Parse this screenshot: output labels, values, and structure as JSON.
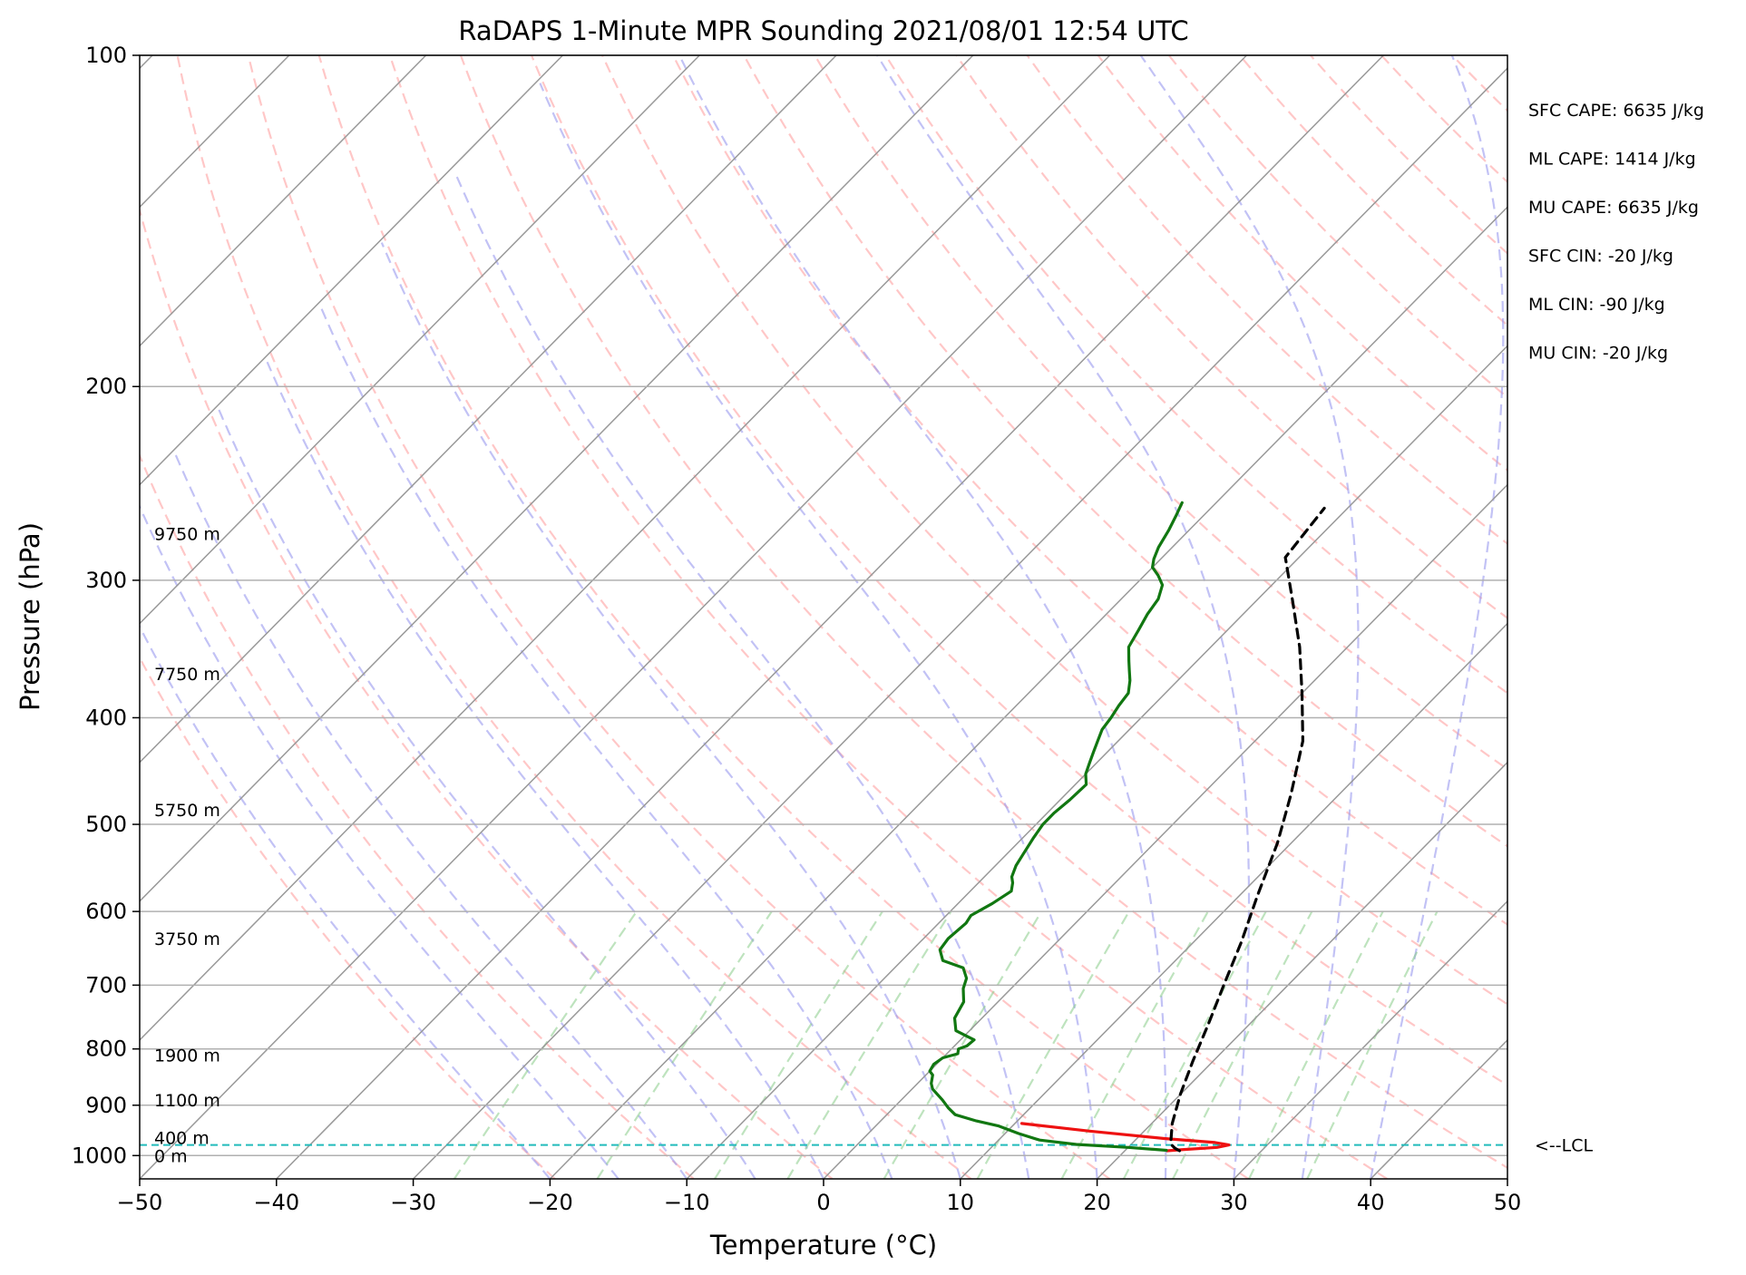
{
  "chart_data": {
    "type": "skew-t",
    "title": "RaDAPS 1-Minute MPR Sounding 2021/08/01 12:54 UTC",
    "xlabel": "Temperature (°C)",
    "ylabel": "Pressure (hPa)",
    "xlim": [
      -50,
      50
    ],
    "ylim": [
      1050,
      100
    ],
    "y_scale": "log",
    "grid": true,
    "x_ticks": [
      "−50",
      "−40",
      "−30",
      "−20",
      "−10",
      "0",
      "10",
      "20",
      "30",
      "40",
      "50"
    ],
    "x_tick_values": [
      -50,
      -40,
      -30,
      -20,
      -10,
      0,
      10,
      20,
      30,
      40,
      50
    ],
    "y_ticks": [
      "100",
      "200",
      "300",
      "400",
      "500",
      "600",
      "700",
      "800",
      "900",
      "1000"
    ],
    "y_tick_values": [
      100,
      200,
      300,
      400,
      500,
      600,
      700,
      800,
      900,
      1000
    ],
    "colors": {
      "temperature": "#ee1111",
      "dewpoint": "#117711",
      "parcel": "#000000",
      "dry_adiabats": "#ff9999",
      "moist_adiabats": "#9999ee",
      "mixing_ratio": "#88cc88",
      "isotherms": "#999999",
      "lcl_line": "#22bbbb"
    },
    "series": [
      {
        "style": "temperature",
        "points": [
          [
            23.1,
            990
          ],
          [
            24.0,
            988
          ],
          [
            26.5,
            983
          ],
          [
            27.2,
            978
          ],
          [
            26.0,
            973
          ],
          [
            22.0,
            965
          ],
          [
            16.0,
            950
          ],
          [
            10.5,
            935
          ]
        ]
      },
      {
        "style": "dewpoint",
        "points": [
          [
            23.0,
            989
          ],
          [
            20.0,
            983
          ],
          [
            16.0,
            977
          ],
          [
            13.0,
            968
          ],
          [
            11.0,
            955
          ],
          [
            9.0,
            940
          ],
          [
            7.0,
            930
          ],
          [
            5.0,
            918
          ],
          [
            4.0,
            905
          ],
          [
            3.0,
            890
          ],
          [
            1.5,
            870
          ],
          [
            1.0,
            860
          ],
          [
            0.5,
            845
          ],
          [
            0.0,
            838
          ],
          [
            -0.2,
            826
          ],
          [
            0.0,
            815
          ],
          [
            0.8,
            808
          ],
          [
            0.5,
            800
          ],
          [
            0.9,
            795
          ],
          [
            1.0,
            785
          ],
          [
            -1.0,
            770
          ],
          [
            -2.0,
            750
          ],
          [
            -2.5,
            725
          ],
          [
            -3.5,
            705
          ],
          [
            -4.0,
            690
          ],
          [
            -5.0,
            675
          ],
          [
            -7.0,
            665
          ],
          [
            -8.0,
            650
          ],
          [
            -8.2,
            635
          ],
          [
            -8.0,
            615
          ],
          [
            -8.2,
            605
          ],
          [
            -7.5,
            590
          ],
          [
            -7.0,
            575
          ],
          [
            -7.5,
            565
          ],
          [
            -8.0,
            558
          ],
          [
            -8.5,
            545
          ],
          [
            -8.8,
            532
          ],
          [
            -9.2,
            515
          ],
          [
            -9.5,
            500
          ],
          [
            -9.5,
            488
          ],
          [
            -9.3,
            475
          ],
          [
            -9.2,
            460
          ],
          [
            -10.0,
            450
          ],
          [
            -10.5,
            440
          ],
          [
            -11.0,
            430
          ],
          [
            -11.5,
            420
          ],
          [
            -12.0,
            410
          ],
          [
            -12.2,
            400
          ],
          [
            -12.5,
            390
          ],
          [
            -12.7,
            380
          ],
          [
            -13.5,
            370
          ],
          [
            -14.3,
            362
          ],
          [
            -15.0,
            355
          ],
          [
            -16.0,
            345
          ],
          [
            -16.5,
            333
          ],
          [
            -17.0,
            322
          ],
          [
            -17.3,
            312
          ],
          [
            -18.0,
            303
          ],
          [
            -19.0,
            297
          ],
          [
            -20.0,
            292
          ],
          [
            -20.5,
            287
          ],
          [
            -21.0,
            280
          ],
          [
            -21.5,
            270
          ],
          [
            -22.0,
            262
          ],
          [
            -22.5,
            255
          ]
        ]
      },
      {
        "style": "parcel",
        "points": [
          [
            24.0,
            990
          ],
          [
            23.5,
            985
          ],
          [
            23.0,
            978
          ],
          [
            22.6,
            968
          ],
          [
            21.5,
            935
          ],
          [
            20.0,
            880
          ],
          [
            18.5,
            820
          ],
          [
            17.0,
            760
          ],
          [
            15.3,
            700
          ],
          [
            13.5,
            640
          ],
          [
            11.3,
            580
          ],
          [
            9.0,
            520
          ],
          [
            6.5,
            470
          ],
          [
            3.5,
            420
          ],
          [
            0.0,
            380
          ],
          [
            -3.5,
            345
          ],
          [
            -7.5,
            312
          ],
          [
            -11.0,
            286
          ],
          [
            -11.7,
            258
          ]
        ]
      }
    ],
    "height_labels": [
      {
        "label": "0 m",
        "p": 1000
      },
      {
        "label": "400 m",
        "p": 963
      },
      {
        "label": "1100 m",
        "p": 890
      },
      {
        "label": "1900 m",
        "p": 810
      },
      {
        "label": "3750 m",
        "p": 635
      },
      {
        "label": "5750 m",
        "p": 485
      },
      {
        "label": "7750 m",
        "p": 365
      },
      {
        "label": "9750 m",
        "p": 272
      }
    ],
    "lcl": {
      "label": "<--LCL",
      "p": 978
    },
    "annotations": [
      "SFC CAPE: 6635 J/kg",
      "ML CAPE: 1414 J/kg",
      "MU CAPE: 6635 J/kg",
      "SFC CIN: -20 J/kg",
      "ML CIN: -90 J/kg",
      "MU CIN: -20 J/kg"
    ]
  }
}
